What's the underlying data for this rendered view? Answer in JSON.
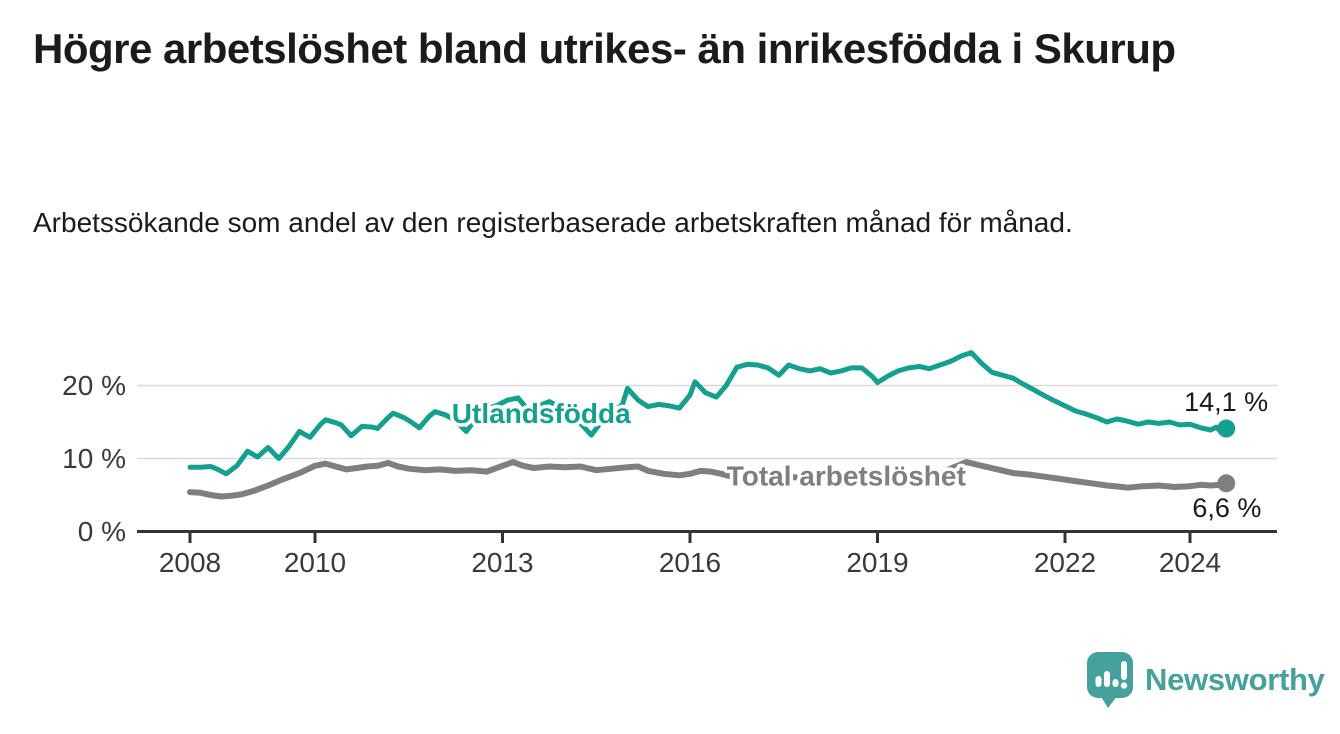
{
  "header": {
    "title": "Högre arbetslöshet bland utrikes- än inrikesfödda i Skurup",
    "subtitle": "Arbetssökande som andel av den registerbaserade arbetskraften månad för månad."
  },
  "footer": {
    "brand": "Newsworthy",
    "logo_icon": "newsworthy-speech-bubble-bar-chart-icon"
  },
  "colors": {
    "teal_line": "#14A08F",
    "gray_line": "#7F7F7F",
    "text": "#1B1B1B",
    "axis_text": "#3A3A3A",
    "gridline": "#D9D9D9",
    "axis_line": "#333333",
    "logo_teal": "#46A09B",
    "background": "#FFFFFF"
  },
  "chart_data": {
    "type": "line",
    "title": "Högre arbetslöshet bland utrikes- än inrikesfödda i Skurup",
    "subtitle": "Arbetssökande som andel av den registerbaserade arbetskraften månad för månad.",
    "x_unit": "decimal_year_monthly",
    "xlim": [
      2007.15,
      2025.4
    ],
    "ylim": [
      0,
      26.5
    ],
    "grid": "horizontal_only",
    "legend": "inline_labels",
    "x_ticks": [
      2008,
      2010,
      2013,
      2016,
      2019,
      2022,
      2024
    ],
    "y_ticks": [
      {
        "value": 0,
        "label": "0 %"
      },
      {
        "value": 10,
        "label": "10 %"
      },
      {
        "value": 20,
        "label": "20 %"
      }
    ],
    "series": [
      {
        "id": "utlandsfodda",
        "name": "Utlandsfödda",
        "color": "#14A08F",
        "stroke_width": 5,
        "label_anchor": [
          2013.62,
          14.86
        ],
        "end_value": 14.1,
        "end_label": "14,1 %",
        "end_label_anchor": [
          2025.25,
          16.5,
          "end"
        ],
        "points": [
          [
            2008.0,
            8.8
          ],
          [
            2008.17,
            8.8
          ],
          [
            2008.33,
            8.9
          ],
          [
            2008.42,
            8.6
          ],
          [
            2008.58,
            7.9
          ],
          [
            2008.75,
            9.0
          ],
          [
            2008.92,
            11.0
          ],
          [
            2009.08,
            10.2
          ],
          [
            2009.25,
            11.5
          ],
          [
            2009.42,
            10.0
          ],
          [
            2009.58,
            11.6
          ],
          [
            2009.75,
            13.7
          ],
          [
            2009.92,
            12.9
          ],
          [
            2010.08,
            14.6
          ],
          [
            2010.17,
            15.3
          ],
          [
            2010.33,
            14.9
          ],
          [
            2010.42,
            14.6
          ],
          [
            2010.58,
            13.1
          ],
          [
            2010.75,
            14.4
          ],
          [
            2010.92,
            14.3
          ],
          [
            2011.0,
            14.1
          ],
          [
            2011.17,
            15.6
          ],
          [
            2011.25,
            16.2
          ],
          [
            2011.42,
            15.6
          ],
          [
            2011.5,
            15.2
          ],
          [
            2011.67,
            14.2
          ],
          [
            2011.83,
            15.8
          ],
          [
            2011.92,
            16.4
          ],
          [
            2012.08,
            16.0
          ],
          [
            2012.25,
            15.2
          ],
          [
            2012.42,
            13.7
          ],
          [
            2012.58,
            15.5
          ],
          [
            2012.75,
            16.8
          ],
          [
            2012.92,
            17.3
          ],
          [
            2013.08,
            18.0
          ],
          [
            2013.25,
            18.3
          ],
          [
            2013.42,
            16.5
          ],
          [
            2013.58,
            17.2
          ],
          [
            2013.75,
            17.8
          ],
          [
            2013.92,
            17.0
          ],
          [
            2014.08,
            16.0
          ],
          [
            2014.25,
            14.8
          ],
          [
            2014.42,
            13.2
          ],
          [
            2014.58,
            15.0
          ],
          [
            2014.75,
            16.3
          ],
          [
            2014.92,
            17.4
          ],
          [
            2015.0,
            19.6
          ],
          [
            2015.17,
            18.0
          ],
          [
            2015.33,
            17.1
          ],
          [
            2015.5,
            17.4
          ],
          [
            2015.67,
            17.2
          ],
          [
            2015.83,
            16.9
          ],
          [
            2016.0,
            18.7
          ],
          [
            2016.08,
            20.5
          ],
          [
            2016.25,
            19.0
          ],
          [
            2016.42,
            18.4
          ],
          [
            2016.58,
            20.0
          ],
          [
            2016.75,
            22.5
          ],
          [
            2016.92,
            22.9
          ],
          [
            2017.08,
            22.8
          ],
          [
            2017.25,
            22.4
          ],
          [
            2017.42,
            21.4
          ],
          [
            2017.58,
            22.8
          ],
          [
            2017.75,
            22.3
          ],
          [
            2017.92,
            22.0
          ],
          [
            2018.08,
            22.3
          ],
          [
            2018.25,
            21.7
          ],
          [
            2018.42,
            22.0
          ],
          [
            2018.58,
            22.4
          ],
          [
            2018.75,
            22.4
          ],
          [
            2018.92,
            21.2
          ],
          [
            2019.0,
            20.4
          ],
          [
            2019.17,
            21.3
          ],
          [
            2019.33,
            22.0
          ],
          [
            2019.5,
            22.4
          ],
          [
            2019.67,
            22.6
          ],
          [
            2019.83,
            22.3
          ],
          [
            2020.0,
            22.8
          ],
          [
            2020.17,
            23.3
          ],
          [
            2020.33,
            24.0
          ],
          [
            2020.5,
            24.5
          ],
          [
            2020.67,
            23.0
          ],
          [
            2020.83,
            21.8
          ],
          [
            2021.0,
            21.4
          ],
          [
            2021.17,
            21.0
          ],
          [
            2021.33,
            20.2
          ],
          [
            2021.5,
            19.4
          ],
          [
            2021.67,
            18.6
          ],
          [
            2021.83,
            17.9
          ],
          [
            2022.0,
            17.2
          ],
          [
            2022.17,
            16.5
          ],
          [
            2022.33,
            16.1
          ],
          [
            2022.5,
            15.6
          ],
          [
            2022.67,
            15.0
          ],
          [
            2022.83,
            15.4
          ],
          [
            2023.0,
            15.1
          ],
          [
            2023.17,
            14.7
          ],
          [
            2023.33,
            15.0
          ],
          [
            2023.5,
            14.8
          ],
          [
            2023.67,
            15.0
          ],
          [
            2023.83,
            14.6
          ],
          [
            2024.0,
            14.7
          ],
          [
            2024.17,
            14.2
          ],
          [
            2024.33,
            13.9
          ],
          [
            2024.42,
            14.3
          ],
          [
            2024.5,
            13.6
          ],
          [
            2024.58,
            14.1
          ]
        ]
      },
      {
        "id": "total-arbetsloshet",
        "name": "Total arbetslöshet",
        "color": "#7F7F7F",
        "stroke_width": 6,
        "label_anchor": [
          2018.5,
          6.3
        ],
        "end_value": 6.6,
        "end_label": "6,6 %",
        "end_label_anchor": [
          2024.59,
          1.99,
          "middle"
        ],
        "points": [
          [
            2008.0,
            5.4
          ],
          [
            2008.17,
            5.3
          ],
          [
            2008.33,
            5.0
          ],
          [
            2008.5,
            4.8
          ],
          [
            2008.67,
            4.9
          ],
          [
            2008.83,
            5.1
          ],
          [
            2009.0,
            5.5
          ],
          [
            2009.25,
            6.3
          ],
          [
            2009.5,
            7.2
          ],
          [
            2009.75,
            8.0
          ],
          [
            2010.0,
            9.0
          ],
          [
            2010.17,
            9.3
          ],
          [
            2010.33,
            8.9
          ],
          [
            2010.5,
            8.5
          ],
          [
            2010.67,
            8.7
          ],
          [
            2010.83,
            8.9
          ],
          [
            2011.0,
            9.0
          ],
          [
            2011.17,
            9.4
          ],
          [
            2011.33,
            8.9
          ],
          [
            2011.5,
            8.6
          ],
          [
            2011.75,
            8.4
          ],
          [
            2012.0,
            8.5
          ],
          [
            2012.25,
            8.3
          ],
          [
            2012.5,
            8.4
          ],
          [
            2012.75,
            8.2
          ],
          [
            2013.0,
            9.0
          ],
          [
            2013.17,
            9.5
          ],
          [
            2013.33,
            9.0
          ],
          [
            2013.5,
            8.7
          ],
          [
            2013.75,
            8.9
          ],
          [
            2014.0,
            8.8
          ],
          [
            2014.25,
            8.9
          ],
          [
            2014.5,
            8.4
          ],
          [
            2014.75,
            8.6
          ],
          [
            2015.0,
            8.8
          ],
          [
            2015.17,
            8.9
          ],
          [
            2015.33,
            8.3
          ],
          [
            2015.58,
            7.9
          ],
          [
            2015.83,
            7.7
          ],
          [
            2016.0,
            7.9
          ],
          [
            2016.17,
            8.3
          ],
          [
            2016.33,
            8.2
          ],
          [
            2016.5,
            7.9
          ],
          [
            2016.67,
            7.5
          ],
          [
            2016.83,
            7.3
          ],
          [
            2017.0,
            7.5
          ],
          [
            2017.25,
            7.7
          ],
          [
            2017.5,
            7.5
          ],
          [
            2017.75,
            7.4
          ],
          [
            2018.0,
            7.5
          ],
          [
            2018.33,
            7.3
          ],
          [
            2018.67,
            7.2
          ],
          [
            2019.0,
            7.4
          ],
          [
            2019.33,
            7.3
          ],
          [
            2019.67,
            7.6
          ],
          [
            2020.0,
            7.9
          ],
          [
            2020.17,
            8.6
          ],
          [
            2020.42,
            9.5
          ],
          [
            2020.67,
            9.0
          ],
          [
            2020.92,
            8.5
          ],
          [
            2021.17,
            8.0
          ],
          [
            2021.42,
            7.8
          ],
          [
            2021.67,
            7.5
          ],
          [
            2021.92,
            7.2
          ],
          [
            2022.17,
            6.9
          ],
          [
            2022.42,
            6.6
          ],
          [
            2022.67,
            6.3
          ],
          [
            2022.92,
            6.1
          ],
          [
            2023.0,
            6.0
          ],
          [
            2023.25,
            6.2
          ],
          [
            2023.5,
            6.3
          ],
          [
            2023.75,
            6.1
          ],
          [
            2024.0,
            6.2
          ],
          [
            2024.17,
            6.4
          ],
          [
            2024.33,
            6.3
          ],
          [
            2024.5,
            6.4
          ],
          [
            2024.58,
            6.6
          ]
        ]
      }
    ]
  }
}
